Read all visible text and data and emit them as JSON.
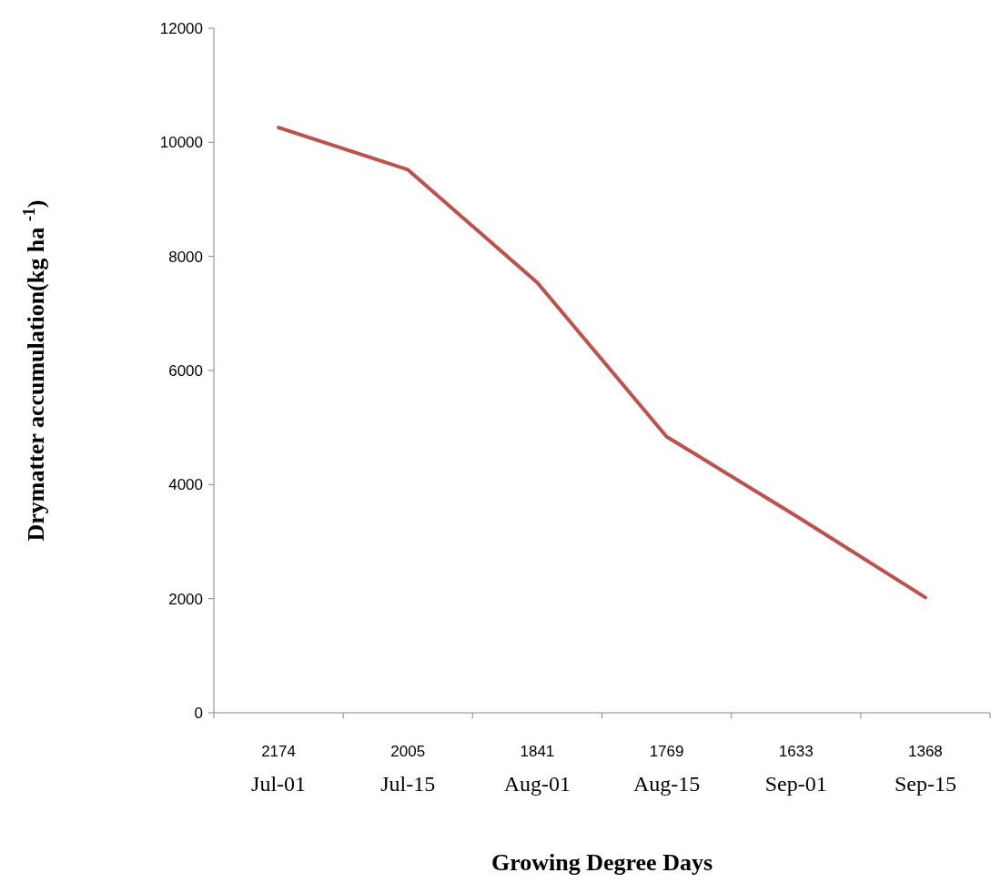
{
  "chart_data": {
    "type": "line",
    "xlabel": "Growing Degree Days",
    "ylabel": "Drymatter accumulation(kg ha $^{-1}$)",
    "categories": [
      "2174\nJul-01",
      "2005\nJul-15",
      "1841\nAug-01",
      "1769\nAug-15",
      "1633\nSep-01",
      "1368\nSep-15"
    ],
    "series": [
      {
        "color": "#c0504d",
        "values": [
          10260,
          9520,
          7540,
          4840,
          3450,
          2020
        ]
      }
    ],
    "ylim": [
      0,
      12000
    ],
    "yticks": [
      0,
      2000,
      4000,
      6000,
      8000,
      10000,
      12000
    ],
    "grid": false,
    "marker": "none",
    "line_style": "solid"
  }
}
